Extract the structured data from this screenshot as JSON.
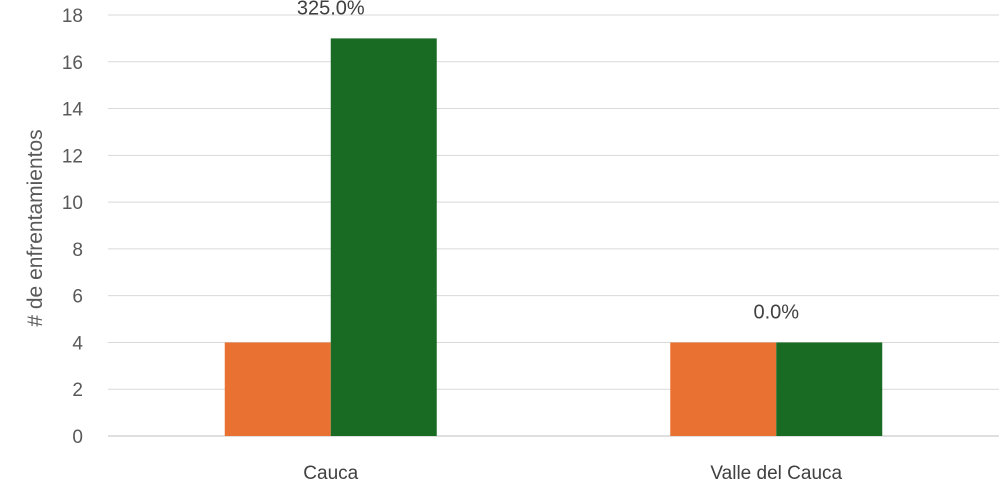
{
  "chart_data": {
    "type": "bar",
    "title": "",
    "xlabel": "",
    "ylabel": "# de enfrentamientos",
    "ylim": [
      0,
      18
    ],
    "yticks": [
      0,
      2,
      4,
      6,
      8,
      10,
      12,
      14,
      16,
      18
    ],
    "grid": true,
    "categories": [
      "Cauca",
      "Valle del Cauca"
    ],
    "series": [
      {
        "values": [
          4,
          4
        ],
        "color": "#E97132"
      },
      {
        "values": [
          17,
          4
        ],
        "color": "#196B24"
      }
    ],
    "annotations": [
      "325.0%",
      "0.0%"
    ]
  }
}
